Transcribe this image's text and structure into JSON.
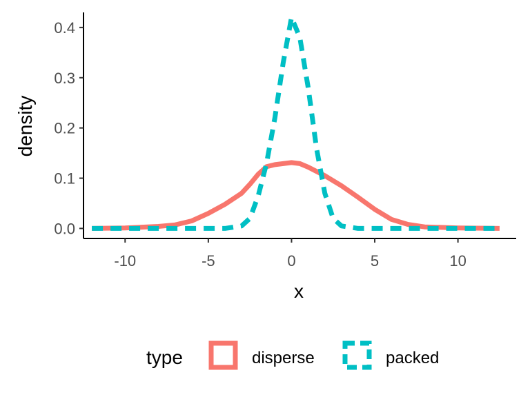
{
  "chart_data": {
    "type": "line",
    "title": "",
    "xlabel": "x",
    "ylabel": "density",
    "xlim": [
      -12.5,
      13.5
    ],
    "ylim": [
      -0.02,
      0.43
    ],
    "x_ticks": [
      -10,
      -5,
      0,
      5,
      10
    ],
    "x_tick_labels": [
      "-10",
      "-5",
      "0",
      "5",
      "10"
    ],
    "y_ticks": [
      0.0,
      0.1,
      0.2,
      0.3,
      0.4
    ],
    "y_tick_labels": [
      "0.0",
      "0.1",
      "0.2",
      "0.3",
      "0.4"
    ],
    "grid": false,
    "legend": {
      "title": "type",
      "position": "bottom"
    },
    "series": [
      {
        "name": "disperse",
        "color": "#F8766D",
        "dash": "solid",
        "x": [
          -12,
          -10,
          -8,
          -7,
          -6,
          -5,
          -4,
          -3,
          -2.5,
          -2,
          -1.5,
          -1,
          -0.5,
          0,
          0.5,
          1,
          2,
          3,
          4,
          5,
          6,
          7,
          8,
          10,
          12.5
        ],
        "y": [
          0.0,
          0.001,
          0.004,
          0.007,
          0.015,
          0.03,
          0.048,
          0.07,
          0.088,
          0.108,
          0.123,
          0.127,
          0.129,
          0.131,
          0.129,
          0.122,
          0.105,
          0.085,
          0.062,
          0.038,
          0.018,
          0.008,
          0.003,
          0.001,
          0.0
        ]
      },
      {
        "name": "packed",
        "color": "#00BFC4",
        "dash": "dashed",
        "x": [
          -12,
          -4,
          -3,
          -2.5,
          -2,
          -1.5,
          -1,
          -0.5,
          0,
          0.5,
          1,
          1.5,
          2,
          2.5,
          3,
          4,
          12.5
        ],
        "y": [
          0.0,
          0.0,
          0.005,
          0.02,
          0.065,
          0.13,
          0.22,
          0.33,
          0.42,
          0.38,
          0.28,
          0.16,
          0.07,
          0.02,
          0.005,
          0.0,
          0.0
        ]
      }
    ]
  }
}
